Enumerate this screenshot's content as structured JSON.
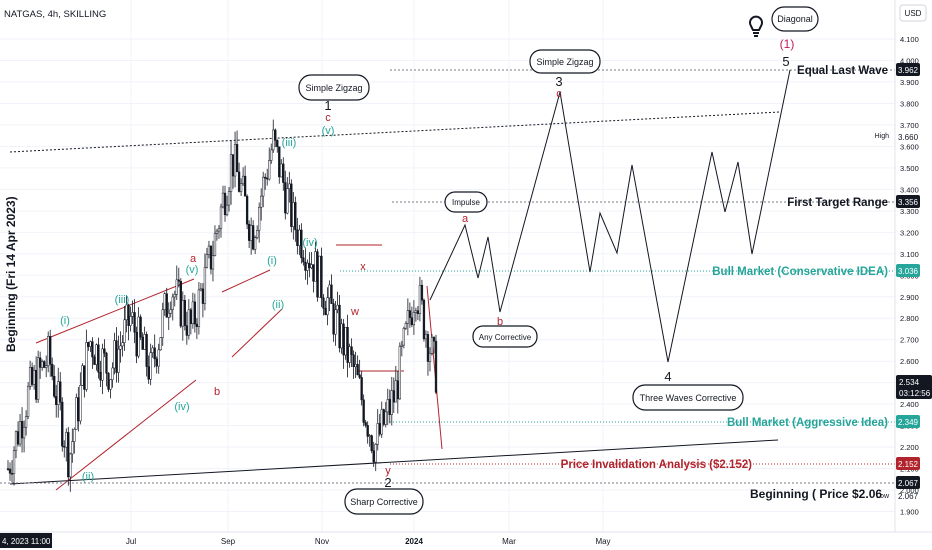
{
  "header": {
    "symbol_title": "NATGAS, 4h, SKILLING"
  },
  "vertical_label": "Beginning (Fri 14 Apr 2023)",
  "price_axis": {
    "currency": "USD",
    "ticks": [
      "4.100",
      "4.000",
      "3.900",
      "3.800",
      "3.700",
      "3.600",
      "3.500",
      "3.400",
      "3.300",
      "3.200",
      "3.100",
      "3.000",
      "2.900",
      "2.800",
      "2.700",
      "2.600",
      "2.500",
      "2.400",
      "2.300",
      "2.200",
      "2.100",
      "2.000",
      "1.900"
    ],
    "tick_values": [
      4.1,
      4.0,
      3.9,
      3.8,
      3.7,
      3.6,
      3.5,
      3.4,
      3.3,
      3.2,
      3.1,
      3.0,
      2.9,
      2.8,
      2.7,
      2.6,
      2.5,
      2.4,
      2.3,
      2.2,
      2.1,
      2.0,
      1.9
    ],
    "high_label": "High",
    "high_value": "3.660",
    "low_label": "Low",
    "low_value": "2.067",
    "current_price": "2.534",
    "countdown": "03:12:56"
  },
  "time_axis": {
    "start_label": "4, 2023 11:00",
    "labels": [
      "Jul",
      "Sep",
      "Nov",
      "2024",
      "Mar",
      "May"
    ]
  },
  "levels": [
    {
      "name": "Equal Last Wave",
      "price": "3.962",
      "color": "#131722"
    },
    {
      "name": "First Target Range",
      "price": "3.356",
      "color": "#131722"
    },
    {
      "name": "Bull Market (Conservative IDEA)",
      "price": "3.036",
      "color": "#26a69a"
    },
    {
      "name": "Bull Market (Aggressive Idea)",
      "price": "2.349",
      "color": "#26a69a"
    },
    {
      "name": "Price Invalidation Analysis ($2.152)",
      "price": "2.152",
      "color": "#b2242d"
    },
    {
      "name": "Beginning ( Price $2.06",
      "price": "2.067",
      "color": "#131722"
    }
  ],
  "callouts": [
    "Diagonal",
    "Simple Zigzag",
    "Simple Zigzag",
    "Impulse",
    "Any Corrective",
    "Three Waves Corrective",
    "Sharp Corrective"
  ],
  "wave_labels": {
    "green": [
      "(i)",
      "(ii)",
      "(iii)",
      "(iv)",
      "(v)",
      "(i)",
      "(ii)",
      "(iii)",
      "(iv)",
      "(v)"
    ],
    "red": [
      "a",
      "b",
      "c",
      "x",
      "w",
      "y",
      "a",
      "b",
      "c"
    ],
    "black": [
      "1",
      "2",
      "3",
      "4",
      "5"
    ],
    "pink": [
      "(1)"
    ]
  },
  "colors": {
    "candles": "#131722",
    "green": "#26a69a",
    "red": "#b2242d",
    "grid": "#f0f3fa",
    "price_tag": "#131722",
    "invalidation_tag": "#b2242d"
  },
  "chart_data": {
    "type": "line",
    "title": "NATGAS, 4h, SKILLING",
    "ylabel": "USD",
    "ylim": [
      1.86,
      4.18
    ],
    "x": [
      "Apr 2023",
      "Jul",
      "Sep",
      "Nov",
      "2024",
      "Mar",
      "May"
    ],
    "series": [
      {
        "name": "",
        "points": [
          [
            "Apr 2023",
            2.1
          ],
          [
            "May",
            2.45
          ],
          [
            "May",
            2.62
          ],
          [
            "Jun",
            2.15
          ],
          [
            "Jun",
            2.7
          ],
          [
            "Jul",
            2.55
          ],
          [
            "Jul",
            2.8
          ],
          [
            "Aug",
            2.55
          ],
          [
            "Aug",
            2.95
          ],
          [
            "Sep",
            2.75
          ],
          [
            "Sep",
            3.1
          ],
          [
            "Sep",
            3.55
          ],
          [
            "Oct",
            3.2
          ],
          [
            "Oct",
            3.62
          ],
          [
            "Nov",
            3.25
          ],
          [
            "Nov",
            3.05
          ],
          [
            "Nov",
            2.8
          ],
          [
            "Dec",
            2.55
          ],
          [
            "Dec",
            2.2
          ],
          [
            "Dec",
            2.45
          ],
          [
            "Jan 2024",
            2.95
          ],
          [
            "Jan 2024",
            2.55
          ]
        ]
      }
    ],
    "projection": [
      {
        "wave": "a",
        "price": 3.26
      },
      {
        "wave": "b",
        "price": 2.84
      },
      {
        "wave": "3",
        "price": 3.87
      },
      {
        "wave": "4",
        "price": 2.62
      },
      {
        "wave": "5",
        "price": 3.96
      }
    ],
    "grid": true
  }
}
